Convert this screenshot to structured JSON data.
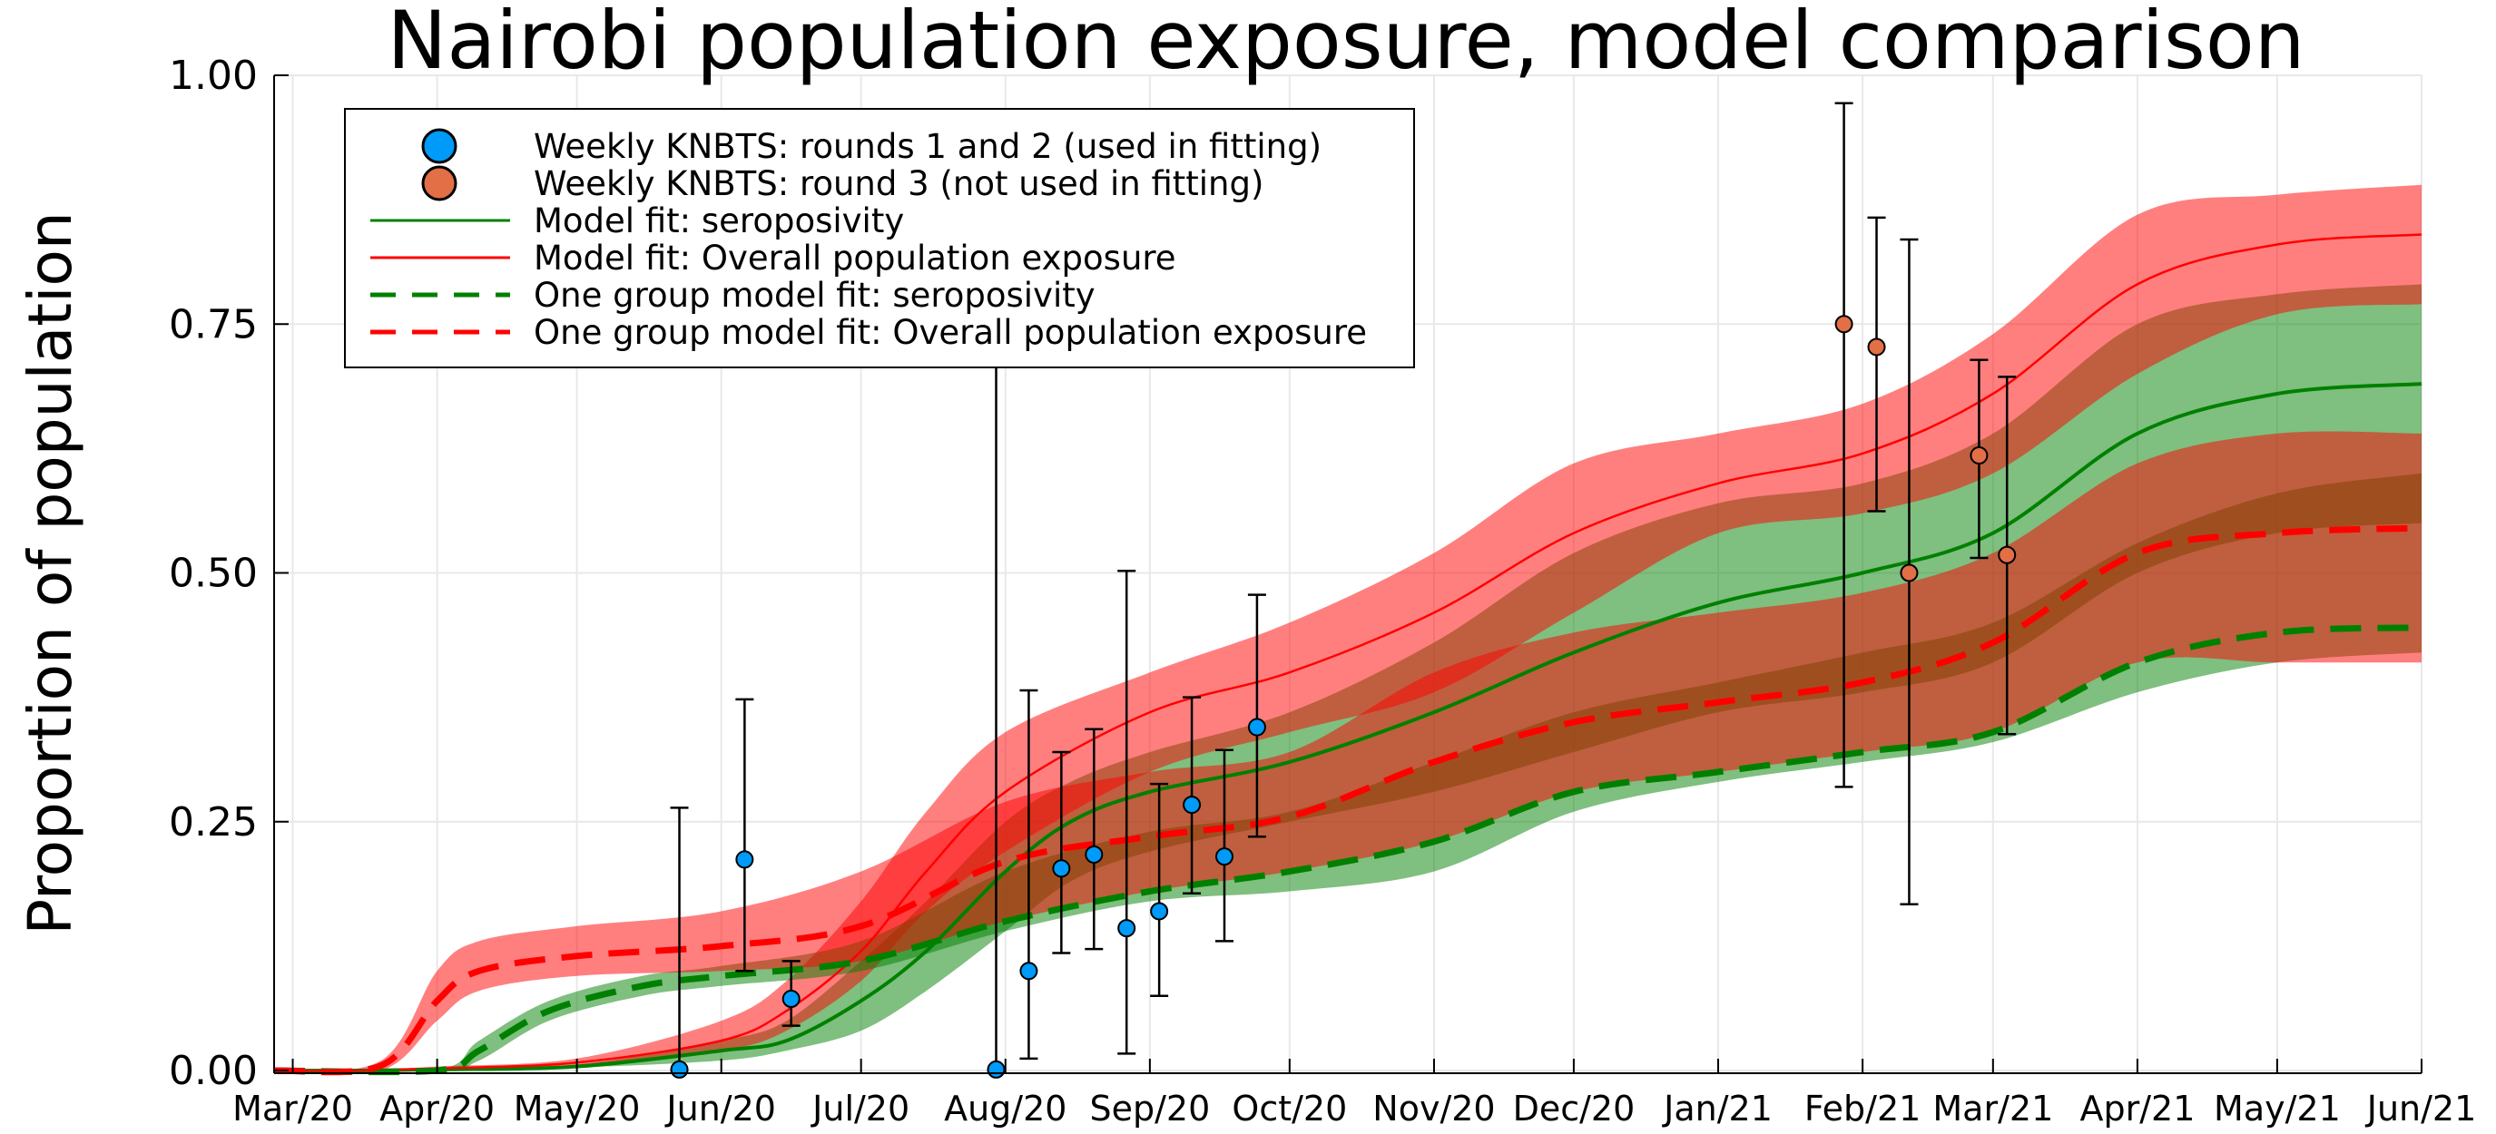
{
  "chart_data": {
    "type": "line",
    "title": "Nairobi population exposure, model comparison",
    "xlabel": "",
    "ylabel": "Proportion of population",
    "ylim": [
      0,
      1
    ],
    "xlim": [
      "2020-02-26",
      "2021-06-01"
    ],
    "grid": true,
    "legend_position": "top-left",
    "y_ticks": [
      {
        "value": 0.0,
        "label": "0.00"
      },
      {
        "value": 0.25,
        "label": "0.25"
      },
      {
        "value": 0.5,
        "label": "0.50"
      },
      {
        "value": 0.75,
        "label": "0.75"
      },
      {
        "value": 1.0,
        "label": "1.00"
      }
    ],
    "x_ticks": [
      {
        "date": "2020-03-01",
        "label": "Mar/20"
      },
      {
        "date": "2020-04-01",
        "label": "Apr/20"
      },
      {
        "date": "2020-05-01",
        "label": "May/20"
      },
      {
        "date": "2020-06-01",
        "label": "Jun/20"
      },
      {
        "date": "2020-07-01",
        "label": "Jul/20"
      },
      {
        "date": "2020-08-01",
        "label": "Aug/20"
      },
      {
        "date": "2020-09-01",
        "label": "Sep/20"
      },
      {
        "date": "2020-10-01",
        "label": "Oct/20"
      },
      {
        "date": "2020-11-01",
        "label": "Nov/20"
      },
      {
        "date": "2020-12-01",
        "label": "Dec/20"
      },
      {
        "date": "2021-01-01",
        "label": "Jan/21"
      },
      {
        "date": "2021-02-01",
        "label": "Feb/21"
      },
      {
        "date": "2021-03-01",
        "label": "Mar/21"
      },
      {
        "date": "2021-04-01",
        "label": "Apr/21"
      },
      {
        "date": "2021-05-01",
        "label": "May/21"
      },
      {
        "date": "2021-06-01",
        "label": "Jun/21"
      }
    ],
    "series": [
      {
        "name": "Model fit: seroposivity",
        "kind": "line",
        "style": "solid",
        "color": "#008000",
        "band_color": "#008000",
        "band_opacity": 0.5,
        "points": [
          [
            "2020-02-26",
            0,
            0,
            0
          ],
          [
            "2020-03-15",
            0,
            0,
            0
          ],
          [
            "2020-04-01",
            0.001,
            0,
            0.002
          ],
          [
            "2020-05-01",
            0.004,
            0.003,
            0.006
          ],
          [
            "2020-06-01",
            0.02,
            0.01,
            0.03
          ],
          [
            "2020-06-15",
            0.03,
            0.02,
            0.05
          ],
          [
            "2020-07-01",
            0.07,
            0.04,
            0.11
          ],
          [
            "2020-07-15",
            0.12,
            0.08,
            0.17
          ],
          [
            "2020-08-01",
            0.2,
            0.14,
            0.25
          ],
          [
            "2020-08-15",
            0.25,
            0.19,
            0.29
          ],
          [
            "2020-09-01",
            0.28,
            0.22,
            0.32
          ],
          [
            "2020-10-01",
            0.31,
            0.25,
            0.36
          ],
          [
            "2020-11-01",
            0.36,
            0.28,
            0.43
          ],
          [
            "2020-12-01",
            0.42,
            0.32,
            0.52
          ],
          [
            "2021-01-01",
            0.47,
            0.36,
            0.57
          ],
          [
            "2021-02-01",
            0.5,
            0.38,
            0.59
          ],
          [
            "2021-03-01",
            0.54,
            0.41,
            0.64
          ],
          [
            "2021-04-01",
            0.64,
            0.5,
            0.75
          ],
          [
            "2021-05-01",
            0.68,
            0.54,
            0.78
          ],
          [
            "2021-06-01",
            0.69,
            0.55,
            0.79
          ]
        ]
      },
      {
        "name": "Model fit: Overall population exposure",
        "kind": "line",
        "style": "solid",
        "color": "#ff0000",
        "band_color": "#ff0000",
        "band_opacity": 0.5,
        "points": [
          [
            "2020-02-26",
            0,
            0,
            0
          ],
          [
            "2020-03-15",
            0,
            0,
            0
          ],
          [
            "2020-04-01",
            0.002,
            0,
            0.004
          ],
          [
            "2020-05-01",
            0.008,
            0.005,
            0.012
          ],
          [
            "2020-06-01",
            0.03,
            0.02,
            0.05
          ],
          [
            "2020-06-15",
            0.06,
            0.04,
            0.09
          ],
          [
            "2020-07-01",
            0.12,
            0.09,
            0.17
          ],
          [
            "2020-07-15",
            0.2,
            0.16,
            0.26
          ],
          [
            "2020-08-01",
            0.28,
            0.22,
            0.34
          ],
          [
            "2020-09-01",
            0.36,
            0.3,
            0.4
          ],
          [
            "2020-10-01",
            0.4,
            0.34,
            0.45
          ],
          [
            "2020-11-01",
            0.46,
            0.38,
            0.52
          ],
          [
            "2020-12-01",
            0.54,
            0.46,
            0.61
          ],
          [
            "2021-01-01",
            0.59,
            0.54,
            0.64
          ],
          [
            "2021-02-01",
            0.62,
            0.56,
            0.67
          ],
          [
            "2021-03-01",
            0.68,
            0.6,
            0.74
          ],
          [
            "2021-04-01",
            0.79,
            0.7,
            0.86
          ],
          [
            "2021-05-01",
            0.83,
            0.76,
            0.88
          ],
          [
            "2021-06-01",
            0.84,
            0.77,
            0.89
          ]
        ]
      },
      {
        "name": "One group model fit: seroposivity",
        "kind": "line",
        "style": "dashed",
        "color": "#008000",
        "band_color": "#008000",
        "band_opacity": 0.5,
        "points": [
          [
            "2020-02-26",
            0,
            0,
            0
          ],
          [
            "2020-04-01",
            0,
            0,
            0.001
          ],
          [
            "2020-04-10",
            0.02,
            0.01,
            0.03
          ],
          [
            "2020-04-25",
            0.06,
            0.05,
            0.07
          ],
          [
            "2020-05-15",
            0.085,
            0.075,
            0.095
          ],
          [
            "2020-06-01",
            0.095,
            0.085,
            0.105
          ],
          [
            "2020-07-01",
            0.11,
            0.1,
            0.13
          ],
          [
            "2020-08-01",
            0.15,
            0.14,
            0.2
          ],
          [
            "2020-09-01",
            0.18,
            0.17,
            0.24
          ],
          [
            "2020-10-01",
            0.2,
            0.18,
            0.26
          ],
          [
            "2020-11-01",
            0.23,
            0.2,
            0.31
          ],
          [
            "2020-12-01",
            0.28,
            0.26,
            0.36
          ],
          [
            "2021-01-01",
            0.3,
            0.29,
            0.39
          ],
          [
            "2021-02-01",
            0.32,
            0.31,
            0.42
          ],
          [
            "2021-03-01",
            0.34,
            0.33,
            0.45
          ],
          [
            "2021-04-01",
            0.41,
            0.38,
            0.53
          ],
          [
            "2021-05-01",
            0.44,
            0.41,
            0.58
          ],
          [
            "2021-06-01",
            0.445,
            0.42,
            0.6
          ]
        ]
      },
      {
        "name": "One group model fit: Overall population exposure",
        "kind": "line",
        "style": "dashed",
        "color": "#ff0000",
        "band_color": "#ff0000",
        "band_opacity": 0.5,
        "points": [
          [
            "2020-02-26",
            0,
            0,
            0
          ],
          [
            "2020-03-20",
            0.005,
            0,
            0.01
          ],
          [
            "2020-04-01",
            0.07,
            0.05,
            0.1
          ],
          [
            "2020-04-10",
            0.1,
            0.08,
            0.13
          ],
          [
            "2020-05-01",
            0.115,
            0.095,
            0.145
          ],
          [
            "2020-06-01",
            0.125,
            0.1,
            0.16
          ],
          [
            "2020-07-01",
            0.145,
            0.11,
            0.2
          ],
          [
            "2020-08-01",
            0.21,
            0.15,
            0.27
          ],
          [
            "2020-09-01",
            0.235,
            0.18,
            0.3
          ],
          [
            "2020-10-01",
            0.255,
            0.2,
            0.32
          ],
          [
            "2020-11-01",
            0.31,
            0.23,
            0.4
          ],
          [
            "2020-12-01",
            0.35,
            0.28,
            0.44
          ],
          [
            "2021-01-01",
            0.37,
            0.3,
            0.46
          ],
          [
            "2021-02-01",
            0.39,
            0.32,
            0.48
          ],
          [
            "2021-03-01",
            0.43,
            0.34,
            0.52
          ],
          [
            "2021-04-01",
            0.52,
            0.41,
            0.61
          ],
          [
            "2021-05-01",
            0.54,
            0.41,
            0.64
          ],
          [
            "2021-06-01",
            0.545,
            0.41,
            0.64
          ]
        ]
      },
      {
        "name": "Weekly KNBTS: rounds 1 and 2 (used in fitting)",
        "kind": "scatter",
        "color": "#009af9",
        "points": [
          [
            "2020-05-23",
            0.001,
            0,
            0.264
          ],
          [
            "2020-06-06",
            0.212,
            0.1,
            0.373
          ],
          [
            "2020-06-16",
            0.072,
            0.045,
            0.11
          ],
          [
            "2020-07-30",
            0.001,
            0,
            0.72
          ],
          [
            "2020-08-06",
            0.1,
            0.012,
            0.382
          ],
          [
            "2020-08-13",
            0.203,
            0.118,
            0.32
          ],
          [
            "2020-08-20",
            0.217,
            0.122,
            0.343
          ],
          [
            "2020-08-27",
            0.143,
            0.017,
            0.502
          ],
          [
            "2020-09-03",
            0.16,
            0.075,
            0.288
          ],
          [
            "2020-09-10",
            0.267,
            0.178,
            0.375
          ],
          [
            "2020-09-17",
            0.215,
            0.13,
            0.322
          ],
          [
            "2020-09-24",
            0.345,
            0.235,
            0.478
          ]
        ]
      },
      {
        "name": "Weekly KNBTS: round 3 (not used in fitting)",
        "kind": "scatter",
        "color": "#e26f46",
        "points": [
          [
            "2021-01-28",
            0.75,
            0.285,
            0.972
          ],
          [
            "2021-02-04",
            0.727,
            0.562,
            0.857
          ],
          [
            "2021-02-11",
            0.5,
            0.167,
            0.835
          ],
          [
            "2021-02-26",
            0.618,
            0.515,
            0.714
          ],
          [
            "2021-03-04",
            0.518,
            0.338,
            0.697
          ]
        ]
      }
    ]
  }
}
